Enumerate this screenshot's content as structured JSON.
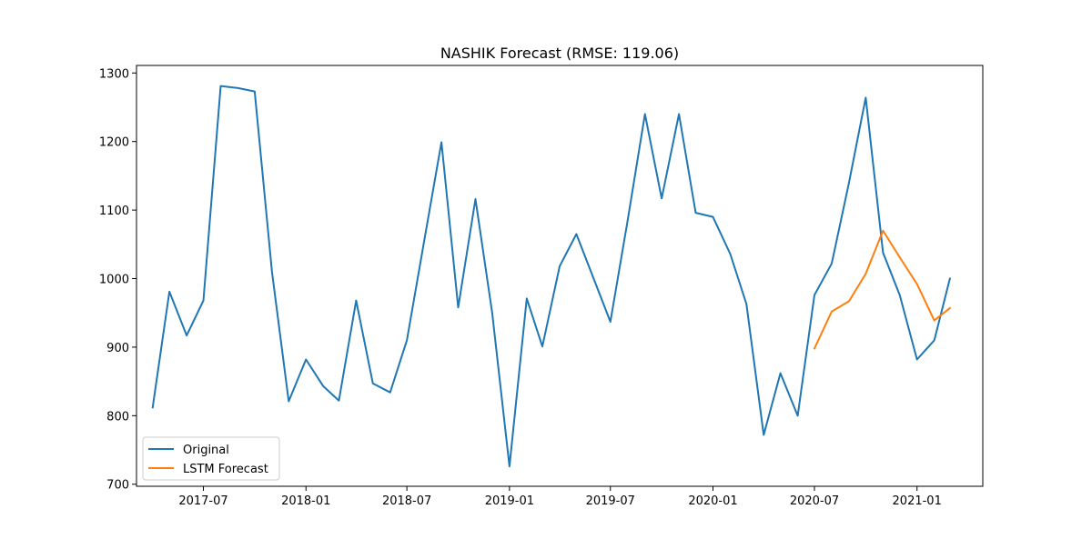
{
  "chart_data": {
    "type": "line",
    "title": "NASHIK Forecast (RMSE: 119.06)",
    "xlabel": "",
    "ylabel": "",
    "x_axis": "date",
    "xlim": [
      "2017-03-03",
      "2021-04-29"
    ],
    "ylim": [
      697,
      1311
    ],
    "x_ticks": [
      "2017-07",
      "2018-01",
      "2018-07",
      "2019-01",
      "2019-07",
      "2020-01",
      "2020-07",
      "2021-01"
    ],
    "y_ticks": [
      700,
      800,
      900,
      1000,
      1100,
      1200,
      1300
    ],
    "grid": false,
    "legend_position": "lower-left",
    "series": [
      {
        "name": "Original",
        "color": "#1f77b4",
        "x": [
          "2017-04",
          "2017-05",
          "2017-06",
          "2017-07",
          "2017-08",
          "2017-09",
          "2017-10",
          "2017-11",
          "2017-12",
          "2018-01",
          "2018-02",
          "2018-03",
          "2018-04",
          "2018-05",
          "2018-06",
          "2018-07",
          "2018-08",
          "2018-09",
          "2018-10",
          "2018-11",
          "2018-12",
          "2019-01",
          "2019-02",
          "2019-03",
          "2019-04",
          "2019-05",
          "2019-06",
          "2019-07",
          "2019-08",
          "2019-09",
          "2019-10",
          "2019-11",
          "2019-12",
          "2020-01",
          "2020-02",
          "2020-03",
          "2020-04",
          "2020-05",
          "2020-06",
          "2020-07",
          "2020-08",
          "2020-09",
          "2020-10",
          "2020-11",
          "2020-12",
          "2021-01",
          "2021-02",
          "2021-03"
        ],
        "values": [
          812,
          981,
          917,
          968,
          1281,
          1278,
          1273,
          1010,
          821,
          882,
          843,
          822,
          968,
          847,
          834,
          910,
          1055,
          1199,
          958,
          1116,
          950,
          726,
          971,
          901,
          1018,
          1065,
          1000,
          937,
          1085,
          1240,
          1117,
          1240,
          1096,
          1090,
          1036,
          963,
          772,
          862,
          800,
          976,
          1022,
          1140,
          1264,
          1038,
          976,
          882,
          910,
          1000
        ]
      },
      {
        "name": "LSTM Forecast",
        "color": "#ff7f0e",
        "x": [
          "2020-07",
          "2020-08",
          "2020-09",
          "2020-10",
          "2020-11",
          "2020-12",
          "2021-01",
          "2021-02",
          "2021-03"
        ],
        "values": [
          898,
          952,
          967,
          1007,
          1070,
          1031,
          992,
          939,
          957
        ]
      }
    ]
  }
}
